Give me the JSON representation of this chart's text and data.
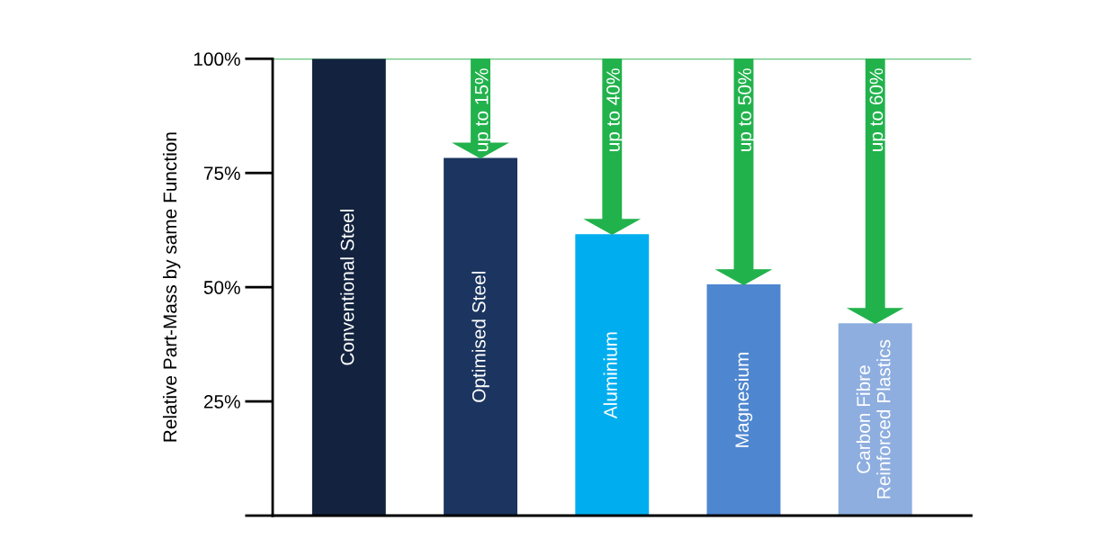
{
  "chart_data": {
    "type": "bar",
    "ylabel": "Relative Part-Mass by same Function",
    "categories": [
      "Conventional Steel",
      "Optimised Steel",
      "Aluminium",
      "Magnesium",
      "Carbon Fibre\nReinforced Plastics"
    ],
    "values": [
      100,
      78.3,
      61.6,
      50.6,
      42.1
    ],
    "colors": [
      "#13233f",
      "#1b3560",
      "#00aeef",
      "#4f86d0",
      "#8eaee0"
    ],
    "ylim": [
      0,
      100
    ],
    "yticks": [
      {
        "value": 0,
        "label": null
      },
      {
        "value": 25,
        "label": "25%"
      },
      {
        "value": 50,
        "label": "50%"
      },
      {
        "value": 75,
        "label": "75%"
      },
      {
        "value": 100,
        "label": "100%"
      }
    ],
    "tick_labels": "y",
    "grid": false,
    "ref_lines": [
      {
        "axis": "y",
        "value": 100,
        "label": null,
        "color": "#3cb45a"
      }
    ],
    "annotations": [
      {
        "text": "up to 15%",
        "x": "Optimised Steel",
        "y": 78.3
      },
      {
        "text": "up to 40%",
        "x": "Aluminium",
        "y": 61.6
      },
      {
        "text": "up to 50%",
        "x": "Magnesium",
        "y": 50.6
      },
      {
        "text": "up to 60%",
        "x": "Carbon Fibre\nReinforced Plastics",
        "y": 42.1
      }
    ]
  }
}
